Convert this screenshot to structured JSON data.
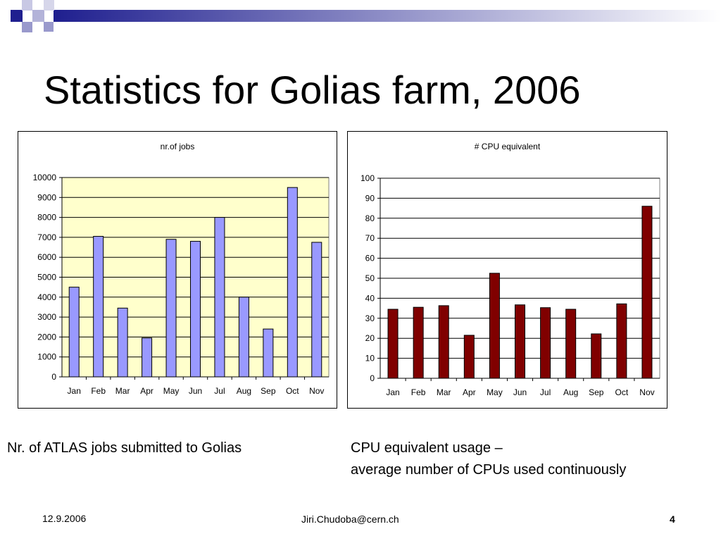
{
  "slide": {
    "title": "Statistics for Golias farm, 2006",
    "caption_left": "Nr. of ATLAS jobs submitted to Golias",
    "caption_right_line1": "CPU equivalent usage –",
    "caption_right_line2": "average number of CPUs used continuously",
    "footer_date": "12.9.2006",
    "footer_email": "Jiri.Chudoba@cern.ch",
    "page_number": "4"
  },
  "colors": {
    "deco_dark": "#1f1f8f",
    "deco_light": "#9999cc",
    "jobs_plot_bg": "#ffffcc",
    "jobs_bar": "#9999ff",
    "cpu_bar": "#800000"
  },
  "chart_data": [
    {
      "type": "bar",
      "title": "nr.of jobs",
      "categories": [
        "Jan",
        "Feb",
        "Mar",
        "Apr",
        "May",
        "Jun",
        "Jul",
        "Aug",
        "Sep",
        "Oct",
        "Nov"
      ],
      "values": [
        4500,
        7050,
        3450,
        1950,
        6900,
        6800,
        8000,
        4000,
        2400,
        9500,
        6750
      ],
      "ylim": [
        0,
        10000
      ],
      "yticks": [
        "0",
        "1000",
        "2000",
        "3000",
        "4000",
        "5000",
        "6000",
        "7000",
        "8000",
        "9000",
        "10000"
      ],
      "xlabel": "",
      "ylabel": "",
      "grid": true,
      "bar_color": "#9999ff",
      "plot_background": "#ffffcc"
    },
    {
      "type": "bar",
      "title": "# CPU equivalent",
      "categories": [
        "Jan",
        "Feb",
        "Mar",
        "Apr",
        "May",
        "Jun",
        "Jul",
        "Aug",
        "Sep",
        "Oct",
        "Nov"
      ],
      "values": [
        34.5,
        35.5,
        36.3,
        21.5,
        52.5,
        36.7,
        35.3,
        34.5,
        22.2,
        37.2,
        86
      ],
      "ylim": [
        0,
        100
      ],
      "yticks": [
        "0",
        "10",
        "20",
        "30",
        "40",
        "50",
        "60",
        "70",
        "80",
        "90",
        "100"
      ],
      "xlabel": "",
      "ylabel": "",
      "grid": true,
      "bar_color": "#800000",
      "plot_background": "#ffffff"
    }
  ]
}
